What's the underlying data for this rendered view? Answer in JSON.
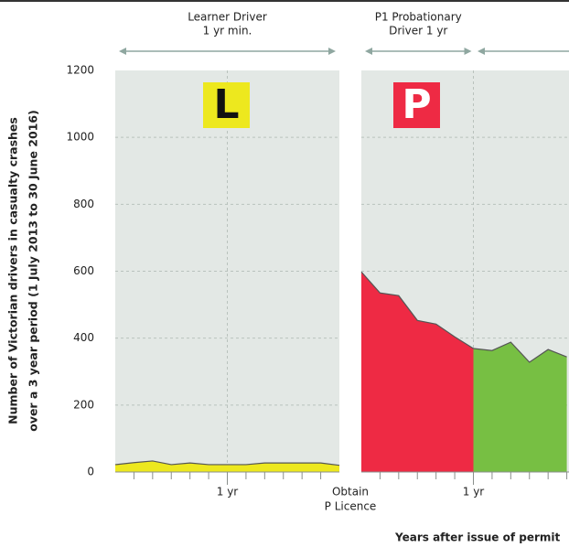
{
  "chart_data": {
    "type": "area",
    "y_label": [
      "Number of Victorian drivers in casualty crashes",
      "over a 3 year period (1 July 2013 to 30 June 2016)"
    ],
    "x_label": "Years after issue of permit",
    "ylim": [
      0,
      1200
    ],
    "yticks": [
      0,
      200,
      400,
      600,
      800,
      1000,
      1200
    ],
    "grid": true,
    "panels": [
      {
        "xlim": [
          0,
          24
        ],
        "stage": [
          "Learner Driver",
          "1 yr min."
        ],
        "badge": "L",
        "badge_color": "#ede81e",
        "badge_text_color": "#111111",
        "xticks": [
          {
            "value": 12,
            "label": "1 yr"
          }
        ],
        "minor_ticks": [
          2,
          4,
          6,
          8,
          10,
          12,
          14,
          16,
          18,
          20,
          22
        ],
        "end_label": [
          "Obtain",
          "P Licence"
        ],
        "series": [
          {
            "color": "#ede81e",
            "x": [
              0,
              2,
              4,
              6,
              8,
              10,
              12,
              14,
              16,
              18,
              20,
              22,
              24
            ],
            "values": [
              22,
              28,
              33,
              22,
              27,
              22,
              22,
              22,
              27,
              27,
              27,
              27,
              20
            ]
          }
        ]
      },
      {
        "xlim": [
          0,
          24
        ],
        "stage": [
          "P1 Probationary",
          "Driver 1 yr"
        ],
        "badge": "P",
        "badge_color": "#ee2a44",
        "badge_text_color": "#ffffff",
        "xticks": [
          {
            "value": 12,
            "label": "1 yr"
          }
        ],
        "minor_ticks": [
          2,
          4,
          6,
          8,
          10,
          12,
          14,
          16,
          18,
          20,
          22
        ],
        "series": [
          {
            "color": "#ee2a44",
            "x": [
              0,
              2,
              4,
              6,
              8,
              10,
              12
            ],
            "values": [
              598,
              535,
              527,
              453,
              442,
              404,
              369
            ]
          },
          {
            "color": "#77bf43",
            "x": [
              12,
              14,
              16,
              18,
              20,
              22
            ],
            "values": [
              369,
              363,
              388,
              328,
              366,
              344
            ]
          }
        ]
      }
    ]
  }
}
